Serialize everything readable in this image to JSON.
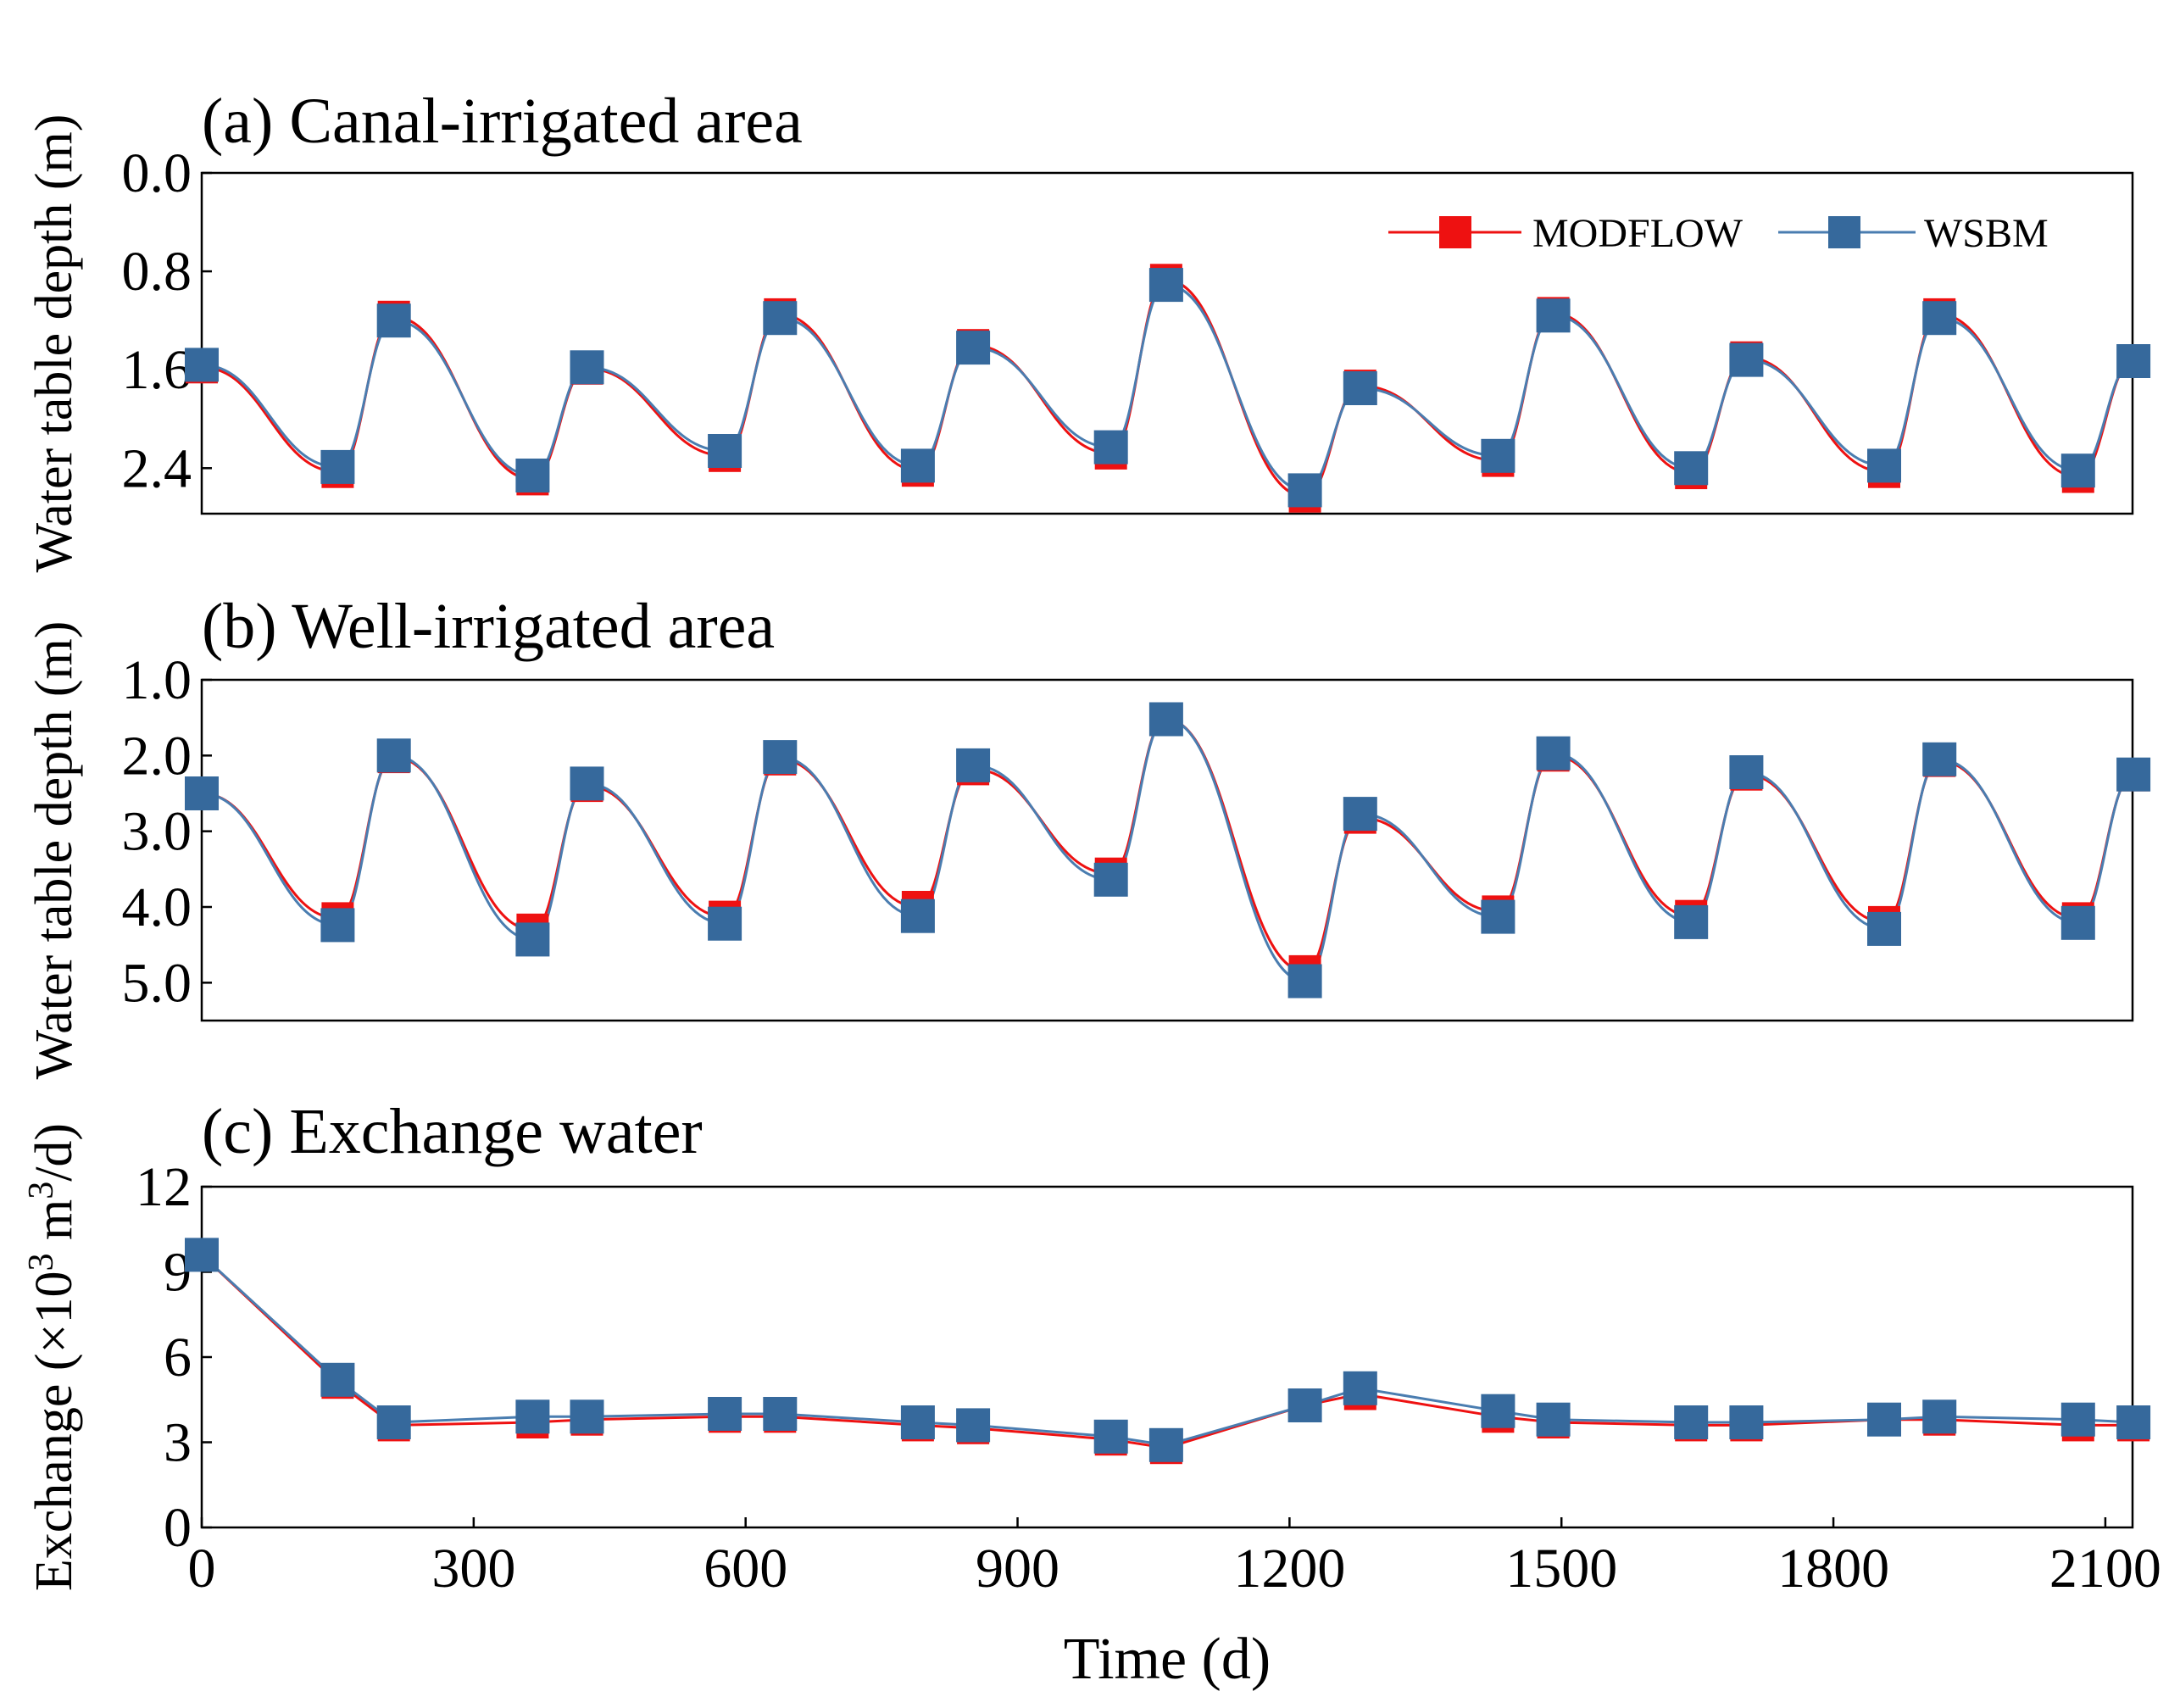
{
  "colors": {
    "modflow": "#ee1111",
    "wsbm": "#36699c",
    "wsbm_line": "#4a7db0",
    "axis": "#000000"
  },
  "legend": {
    "modflow": "MODFLOW",
    "wsbm": "WSBM",
    "placement": "top-right"
  },
  "x_axis": {
    "label": "Time (d)",
    "ticks": [
      "0",
      "300",
      "600",
      "900",
      "1200",
      "1500",
      "1800",
      "2100"
    ],
    "tick_values": [
      0,
      300,
      600,
      900,
      1200,
      1500,
      1800,
      2100
    ],
    "range": [
      0,
      2130
    ]
  },
  "chart_data": [
    {
      "type": "line",
      "title": "(a) Canal-irrigated area",
      "ylabel": "Water table depth (m)",
      "yticks": [
        "0.0",
        "0.8",
        "1.6",
        "2.4"
      ],
      "ytick_values": [
        0,
        0.8,
        1.6,
        2.4
      ],
      "ylim": [
        0,
        2.77
      ],
      "inverted": true,
      "x": [
        0,
        150,
        212,
        365,
        425,
        577,
        638,
        790,
        851,
        1003,
        1064,
        1217,
        1278,
        1430,
        1491,
        1643,
        1704,
        1856,
        1917,
        2070,
        2131
      ],
      "series": [
        {
          "name": "MODFLOW",
          "values": [
            1.58,
            2.43,
            1.17,
            2.49,
            1.59,
            2.3,
            1.15,
            2.42,
            1.4,
            2.28,
            0.87,
            2.63,
            1.73,
            2.34,
            1.14,
            2.44,
            1.5,
            2.43,
            1.15,
            2.47,
            1.53
          ]
        },
        {
          "name": "WSBM",
          "values": [
            1.56,
            2.39,
            1.2,
            2.46,
            1.58,
            2.26,
            1.18,
            2.38,
            1.42,
            2.23,
            0.91,
            2.58,
            1.75,
            2.3,
            1.16,
            2.4,
            1.52,
            2.38,
            1.18,
            2.42,
            1.53
          ]
        }
      ]
    },
    {
      "type": "line",
      "title": "(b) Well-irrigated area",
      "ylabel": "Water table depth (m)",
      "yticks": [
        "1.0",
        "2.0",
        "3.0",
        "4.0",
        "5.0"
      ],
      "ytick_values": [
        1,
        2,
        3,
        4,
        5
      ],
      "ylim": [
        1.0,
        5.5
      ],
      "inverted": true,
      "x": [
        0,
        150,
        212,
        365,
        425,
        577,
        638,
        790,
        851,
        1003,
        1064,
        1217,
        1278,
        1430,
        1491,
        1643,
        1704,
        1856,
        1917,
        2070,
        2131
      ],
      "series": [
        {
          "name": "MODFLOW",
          "values": [
            2.5,
            4.15,
            2.02,
            4.3,
            2.4,
            4.13,
            2.05,
            4.0,
            2.18,
            3.56,
            1.52,
            4.85,
            2.82,
            4.06,
            2.0,
            4.12,
            2.25,
            4.2,
            2.07,
            4.15,
            2.26
          ]
        },
        {
          "name": "WSBM",
          "values": [
            2.5,
            4.24,
            2.0,
            4.43,
            2.37,
            4.22,
            2.02,
            4.12,
            2.13,
            3.64,
            1.52,
            4.98,
            2.77,
            4.13,
            1.97,
            4.2,
            2.22,
            4.29,
            2.05,
            4.21,
            2.25
          ]
        }
      ]
    },
    {
      "type": "line",
      "title": "(c) Exchange water",
      "ylabel": "Exchange (×10³ m³/d)",
      "ylabel_parts": {
        "prefix": "Exchange (×10",
        "sup1": "3",
        "mid": " m",
        "sup2": "3",
        "suffix": "/d)"
      },
      "yticks": [
        "0",
        "3",
        "6",
        "9",
        "12"
      ],
      "ytick_values": [
        0,
        3,
        6,
        9,
        12
      ],
      "ylim": [
        0,
        12
      ],
      "inverted": false,
      "x": [
        0,
        150,
        212,
        365,
        425,
        577,
        638,
        790,
        851,
        1003,
        1064,
        1217,
        1278,
        1430,
        1491,
        1643,
        1704,
        1856,
        1917,
        2070,
        2131
      ],
      "series": [
        {
          "name": "MODFLOW",
          "values": [
            9.6,
            5.1,
            3.6,
            3.7,
            3.8,
            3.9,
            3.9,
            3.6,
            3.5,
            3.1,
            2.8,
            4.3,
            4.7,
            3.9,
            3.7,
            3.6,
            3.6,
            3.8,
            3.8,
            3.6,
            3.6
          ]
        },
        {
          "name": "WSBM",
          "values": [
            9.6,
            5.2,
            3.7,
            3.9,
            3.9,
            4.0,
            4.0,
            3.7,
            3.6,
            3.2,
            2.9,
            4.3,
            4.9,
            4.1,
            3.8,
            3.7,
            3.7,
            3.8,
            3.9,
            3.8,
            3.7
          ]
        }
      ]
    }
  ]
}
